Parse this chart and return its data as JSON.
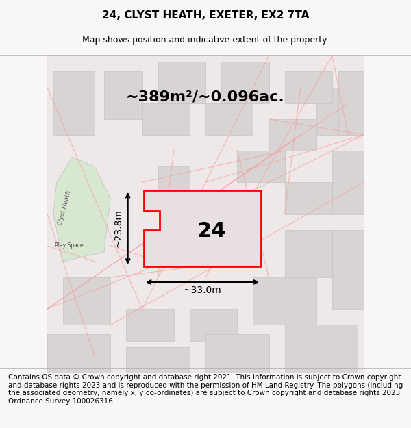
{
  "title": "24, CLYST HEATH, EXETER, EX2 7TA",
  "subtitle": "Map shows position and indicative extent of the property.",
  "area_text": "~389m²/~0.096ac.",
  "number_label": "24",
  "dim_horizontal": "~33.0m",
  "dim_vertical": "~23.8m",
  "footer": "Contains OS data © Crown copyright and database right 2021. This information is subject to Crown copyright and database rights 2023 and is reproduced with the permission of HM Land Registry. The polygons (including the associated geometry, namely x, y co-ordinates) are subject to Crown copyright and database rights 2023 Ordnance Survey 100026316.",
  "bg_color": "#f5f0f0",
  "map_bg": "#f0eeee",
  "plot_bg": "#e8e4e4",
  "red_color": "#ff0000",
  "pink_color": "#f4a0a0",
  "gray_color": "#d0cccc",
  "green_color": "#d4e8d0",
  "title_fontsize": 11,
  "subtitle_fontsize": 9,
  "area_fontsize": 16,
  "label_fontsize": 22,
  "dim_fontsize": 10,
  "footer_fontsize": 7.5
}
